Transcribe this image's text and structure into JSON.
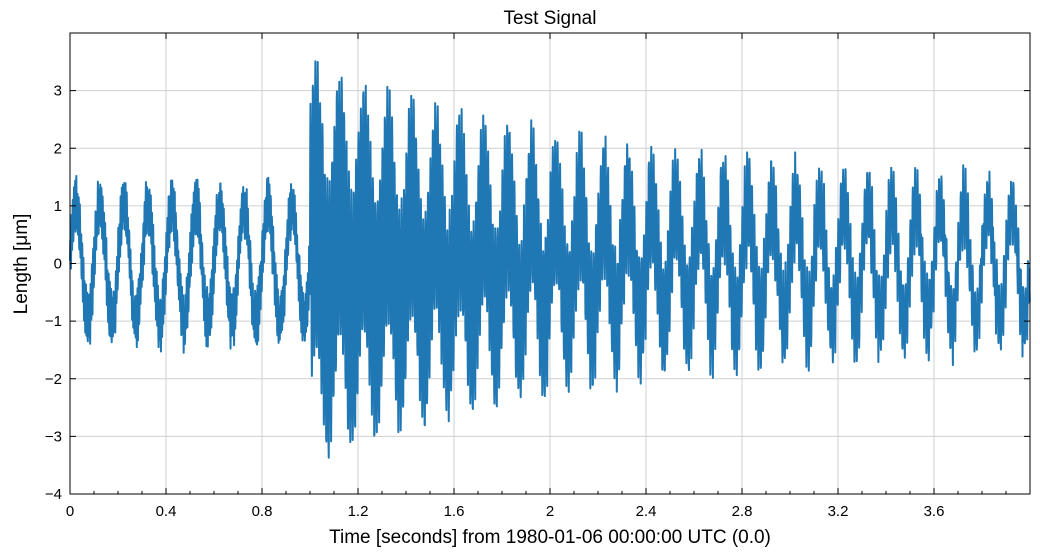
{
  "chart_data": {
    "type": "line",
    "title": "Test Signal",
    "xlabel": "Time [seconds] from 1980-01-06 00:00:00 UTC (0.0)",
    "ylabel": "Length [μm]",
    "xlim": [
      0,
      4.0
    ],
    "ylim": [
      -4,
      4
    ],
    "grid": true,
    "series_color": "#1f77b4",
    "x_ticks": [
      {
        "value": 0,
        "label": "0"
      },
      {
        "value": 0.4,
        "label": "0.4"
      },
      {
        "value": 0.8,
        "label": "0.8"
      },
      {
        "value": 1.2,
        "label": "1.2"
      },
      {
        "value": 1.6,
        "label": "1.6"
      },
      {
        "value": 2.0,
        "label": "2"
      },
      {
        "value": 2.4,
        "label": "2.4"
      },
      {
        "value": 2.8,
        "label": "2.8"
      },
      {
        "value": 3.2,
        "label": "3.2"
      },
      {
        "value": 3.6,
        "label": "3.6"
      }
    ],
    "y_ticks": [
      {
        "value": 3,
        "label": "3"
      },
      {
        "value": 2,
        "label": "2"
      },
      {
        "value": 1,
        "label": "1"
      },
      {
        "value": 0,
        "label": "0"
      },
      {
        "value": -1,
        "label": "−1"
      },
      {
        "value": -2,
        "label": "−2"
      },
      {
        "value": -3,
        "label": "−3"
      },
      {
        "value": -4,
        "label": "−4"
      }
    ],
    "signal": {
      "sample_rate_hz": 1024,
      "components": [
        {
          "kind": "sine",
          "frequency_hz": 10,
          "amplitude": 1.0,
          "start": 0
        },
        {
          "kind": "sine",
          "frequency_hz": 200,
          "amplitude": 0.4,
          "start": 0
        },
        {
          "kind": "noise",
          "amplitude": 0.1,
          "start": 0
        },
        {
          "kind": "decaying_sine",
          "frequency_hz": 100,
          "amplitude": 2.4,
          "start": 1.0,
          "decay_time": 1.3
        }
      ],
      "approx_extrema": {
        "max": 3.6,
        "min": -3.65
      }
    }
  }
}
